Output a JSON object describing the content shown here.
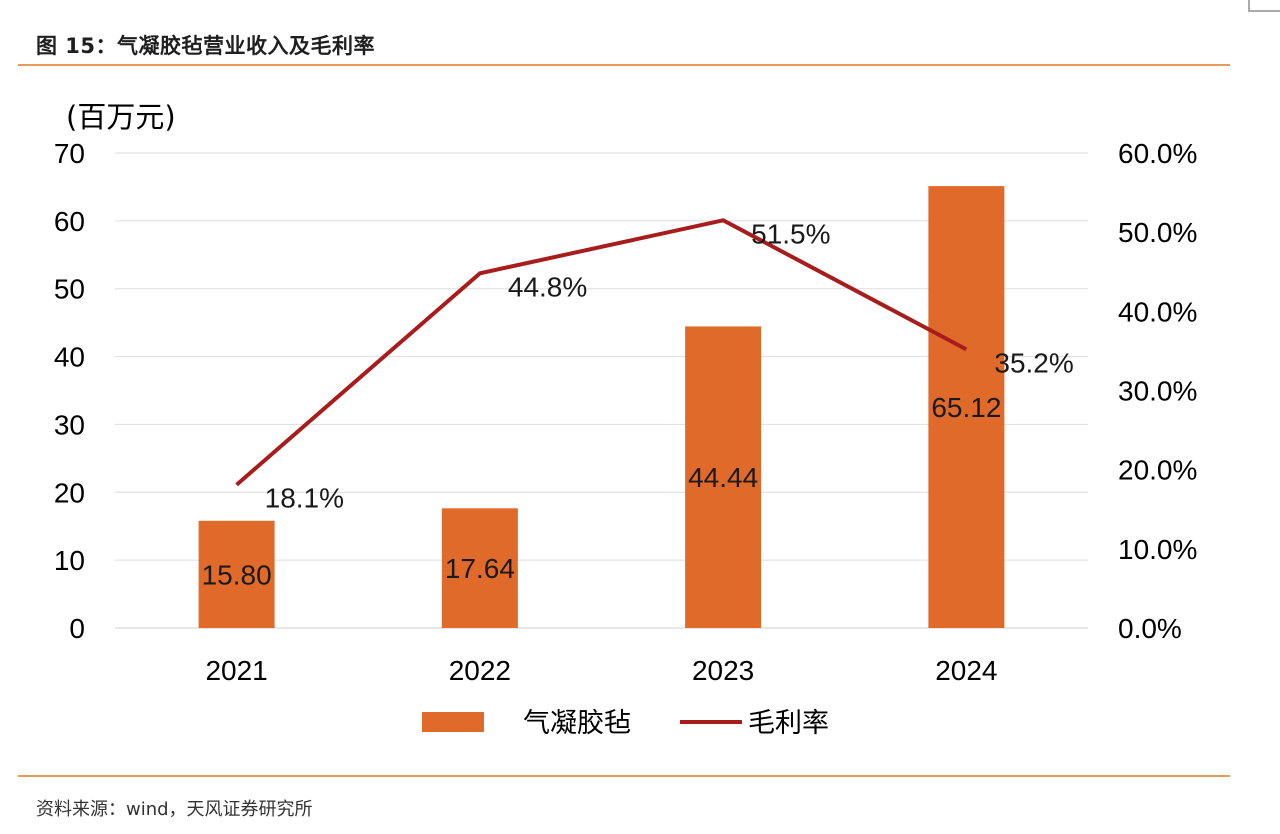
{
  "figure": {
    "title": "图 15：气凝胶毡营业收入及毛利率",
    "source": "资料来源：wind，天风证券研究所"
  },
  "chart_data": {
    "type": "bar",
    "categories": [
      "2021",
      "2022",
      "2023",
      "2024"
    ],
    "y_unit_label": "(百万元)",
    "ylim": [
      0,
      70
    ],
    "yticks": [
      "0",
      "10",
      "20",
      "30",
      "40",
      "50",
      "60",
      "70"
    ],
    "y2lim": [
      0,
      60
    ],
    "y2ticks": [
      "0.0%",
      "10.0%",
      "20.0%",
      "30.0%",
      "40.0%",
      "50.0%",
      "60.0%"
    ],
    "grid": true,
    "legend_position": "bottom",
    "series": [
      {
        "name": "气凝胶毡",
        "type": "bar",
        "axis": "left",
        "color": "#e06a2a",
        "values": [
          15.8,
          17.64,
          44.44,
          65.12
        ],
        "labels": [
          "15.80",
          "17.64",
          "44.44",
          "65.12"
        ]
      },
      {
        "name": "毛利率",
        "type": "line",
        "axis": "right",
        "color": "#a81c1c",
        "values": [
          18.1,
          44.8,
          51.5,
          35.2
        ],
        "labels": [
          "18.1%",
          "44.8%",
          "51.5%",
          "35.2%"
        ]
      }
    ]
  }
}
